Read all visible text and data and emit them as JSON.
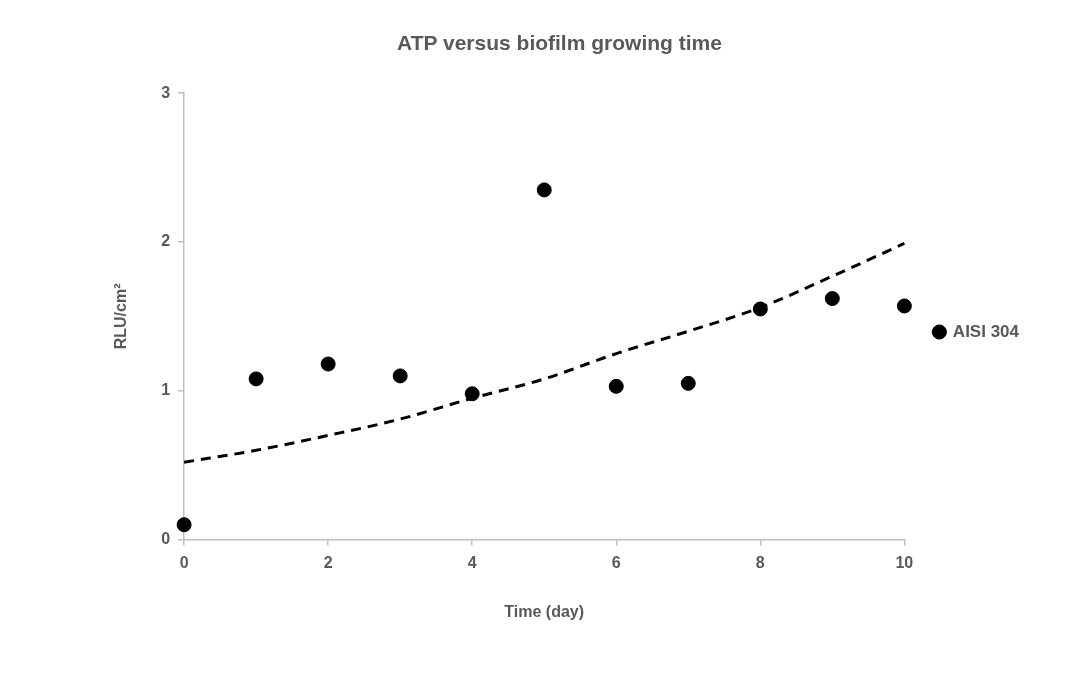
{
  "chart_data": {
    "type": "scatter",
    "title": "ATP versus biofilm growing time",
    "xlabel": "Time (day)",
    "ylabel": "RLU/cm²",
    "x": [
      0,
      1,
      2,
      3,
      4,
      5,
      6,
      7,
      8,
      9,
      10
    ],
    "xlim": [
      0,
      10
    ],
    "xticks": [
      0,
      2,
      4,
      6,
      8,
      10
    ],
    "ylim": [
      0,
      3
    ],
    "yticks": [
      0,
      1,
      2,
      3
    ],
    "grid": false,
    "legend": "right",
    "marker": "circle",
    "series": [
      {
        "name": "AISI 304",
        "color": "#000000",
        "values": [
          0.1,
          1.08,
          1.18,
          1.1,
          0.98,
          2.35,
          1.03,
          1.05,
          1.55,
          1.62,
          1.57
        ]
      },
      {
        "type": "line",
        "color": "#000000",
        "line_style": "dashed",
        "marker": "none",
        "x": [
          0,
          1,
          2,
          3,
          4,
          5,
          6,
          7,
          8,
          9,
          10
        ],
        "values": [
          0.52,
          0.6,
          0.7,
          0.81,
          0.95,
          1.08,
          1.25,
          1.4,
          1.56,
          1.77,
          1.99
        ]
      }
    ]
  }
}
